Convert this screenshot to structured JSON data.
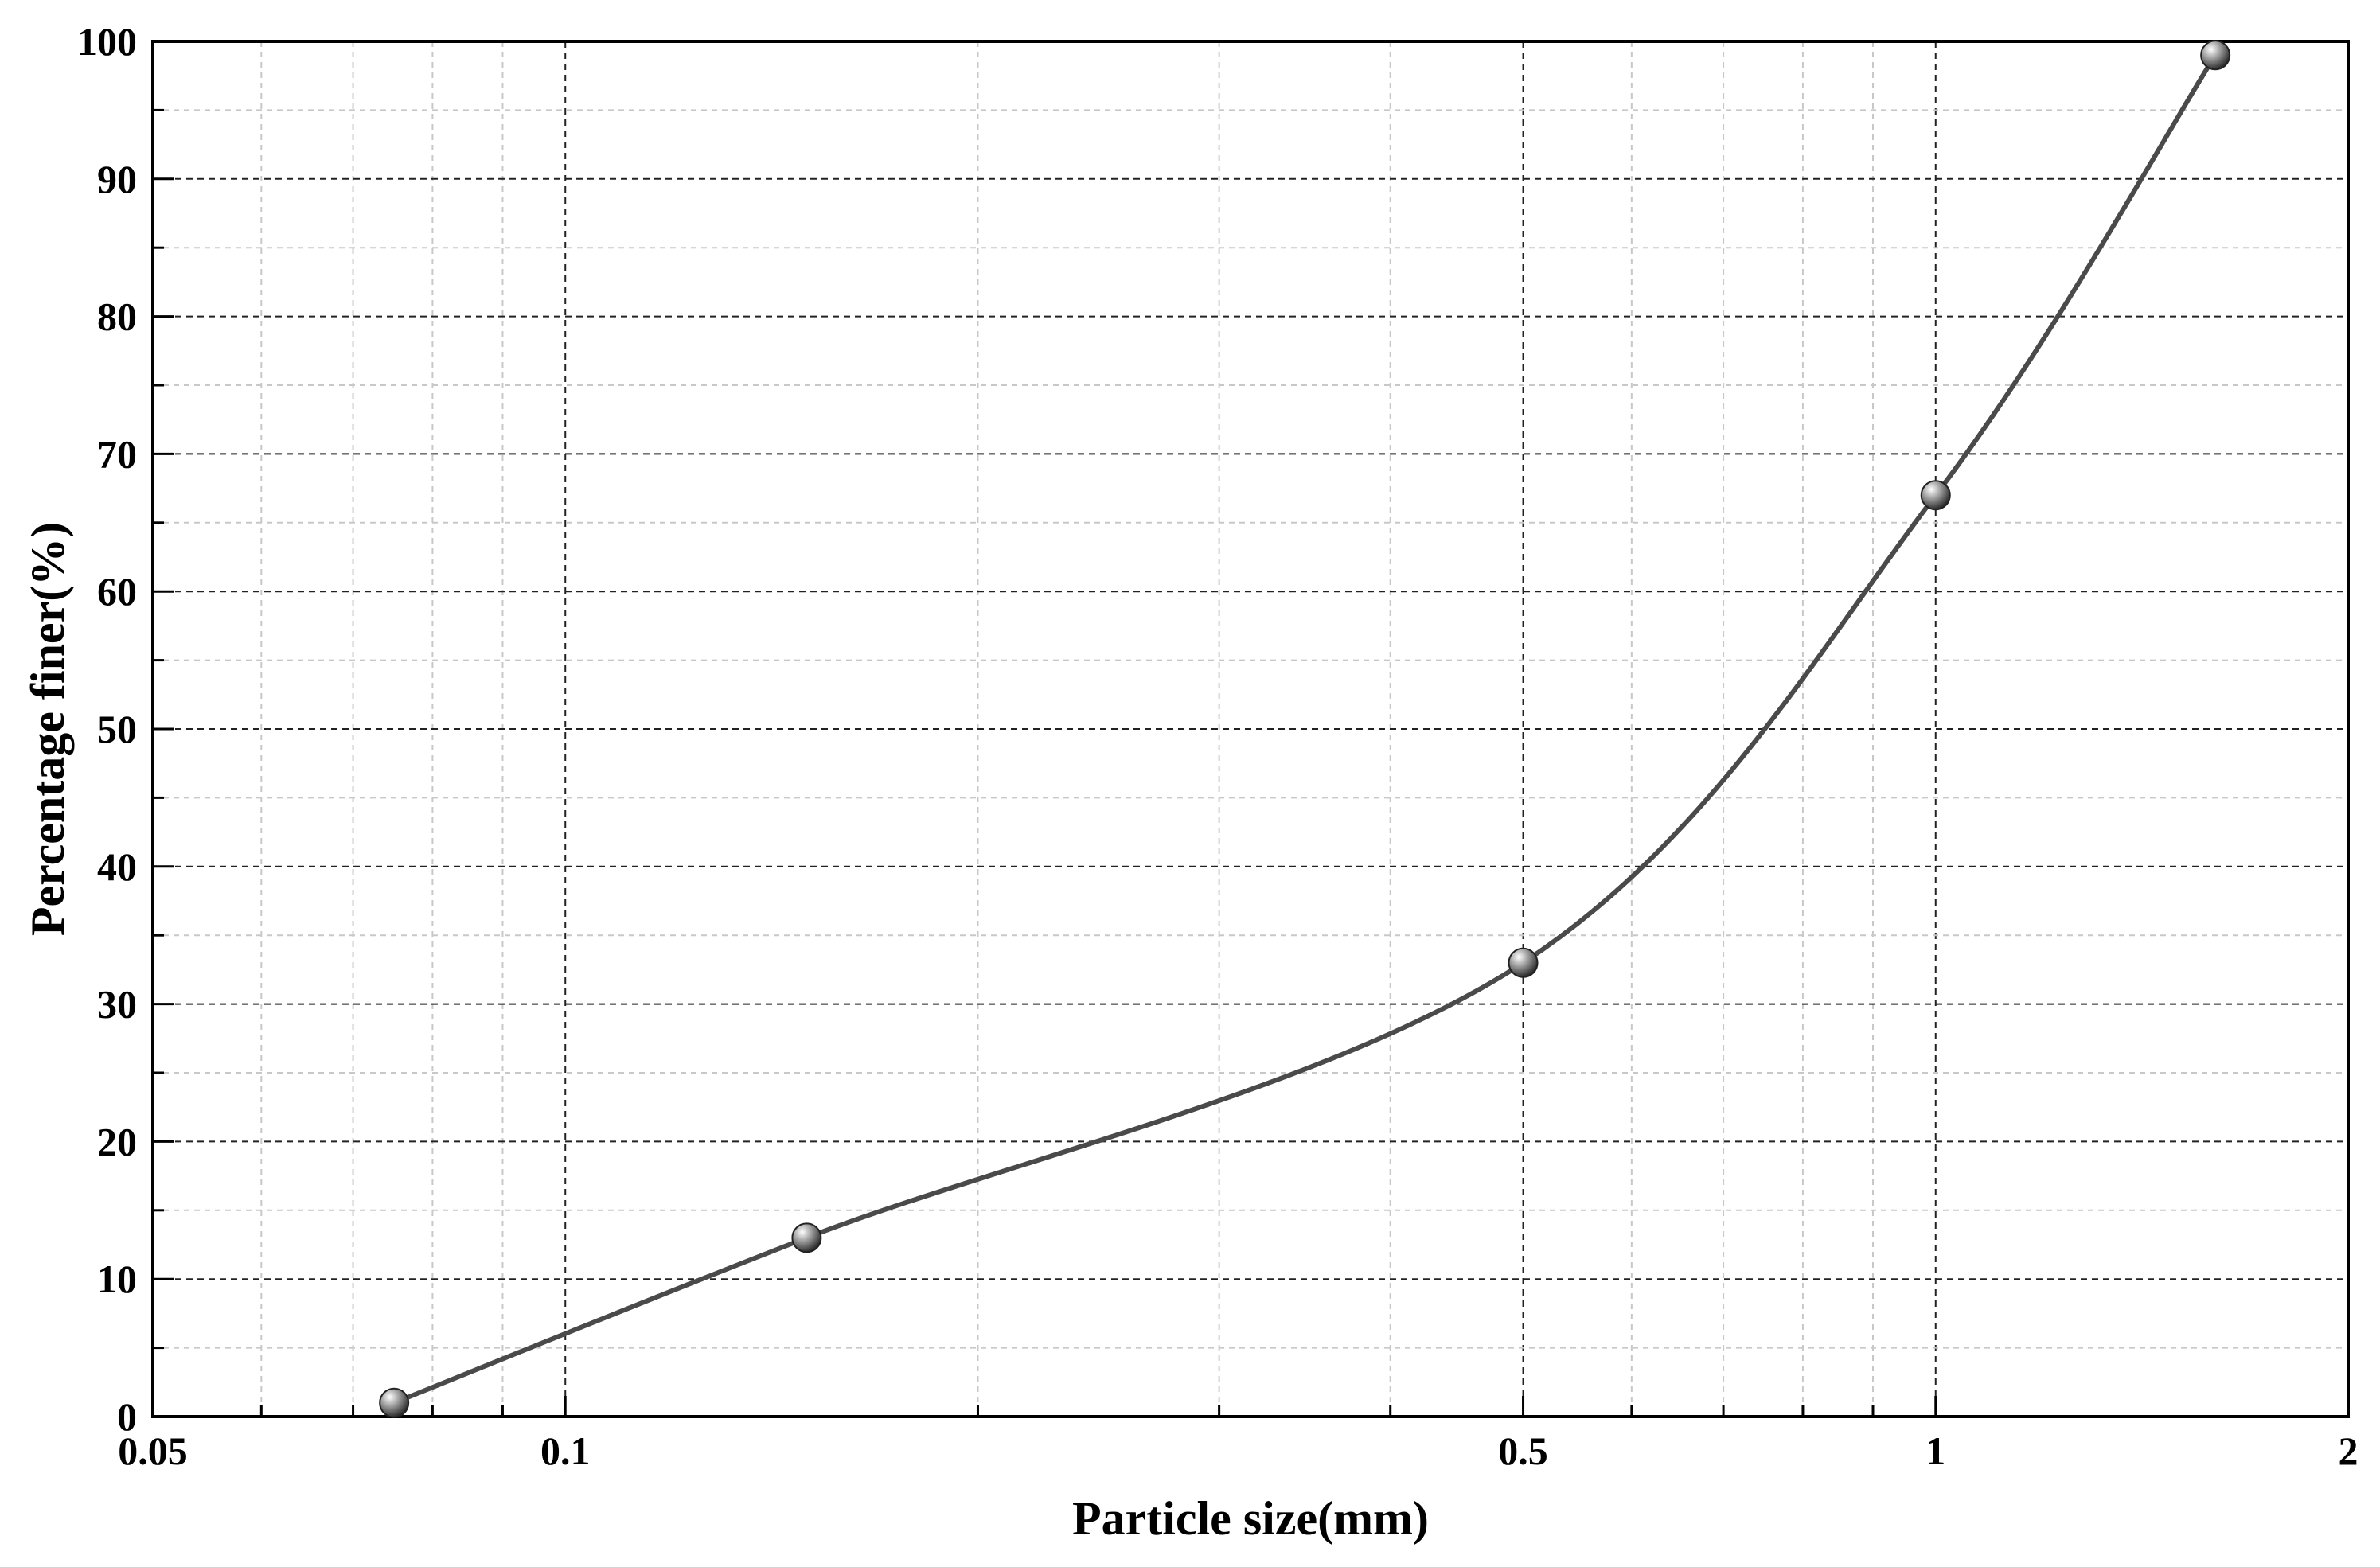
{
  "chart_data": {
    "type": "line",
    "title": "",
    "xlabel": "Particle size(mm)",
    "ylabel": "Percentage finer(%)",
    "x_scale": "log",
    "xlim": [
      0.05,
      2
    ],
    "ylim": [
      0,
      100
    ],
    "x_ticks": [
      {
        "value": 0.05,
        "label": "0.05"
      },
      {
        "value": 0.1,
        "label": "0.1"
      },
      {
        "value": 0.5,
        "label": "0.5"
      },
      {
        "value": 1,
        "label": "1"
      },
      {
        "value": 2,
        "label": "2"
      }
    ],
    "y_ticks": [
      0,
      10,
      20,
      30,
      40,
      50,
      60,
      70,
      80,
      90,
      100
    ],
    "grid": true,
    "legend": "none",
    "series": [
      {
        "x": [
          0.075,
          0.15,
          0.5,
          1,
          1.6
        ],
        "y": [
          1,
          13,
          33,
          67,
          99
        ],
        "color": "#4a4a4a",
        "marker": "sphere"
      }
    ]
  }
}
